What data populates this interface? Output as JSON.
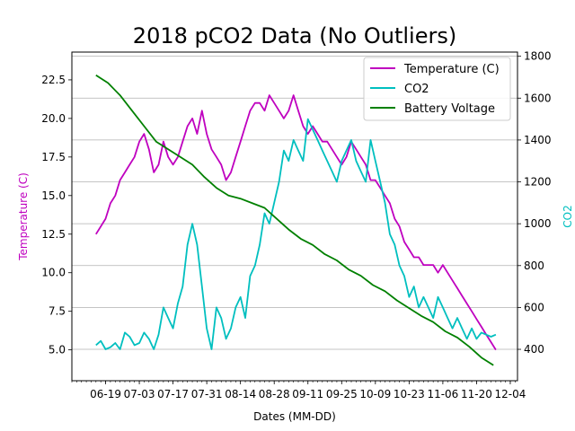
{
  "chart_data": {
    "type": "line",
    "title": "2018 pCO2 Data (No Outliers)",
    "xlabel": "Dates (MM-DD)",
    "ylabel_left": "Temperature (C)",
    "ylabel_right": "CO2",
    "x_ticks": [
      "06-19",
      "07-03",
      "07-17",
      "07-31",
      "08-14",
      "08-28",
      "09-11",
      "09-25",
      "10-09",
      "10-23",
      "11-06",
      "11-20",
      "12-04"
    ],
    "xlim": [
      "06-05",
      "12-07"
    ],
    "y_left_ticks": [
      "5.0",
      "7.5",
      "10.0",
      "12.5",
      "15.0",
      "17.5",
      "20.0",
      "22.5"
    ],
    "ylim_left": [
      3.0,
      24.3
    ],
    "y_right_ticks": [
      "400",
      "600",
      "800",
      "1000",
      "1200",
      "1400",
      "1600",
      "1800"
    ],
    "ylim_right": [
      250,
      1820
    ],
    "right_grid": true,
    "legend_position": "upper right",
    "colors": {
      "temperature": "#bf00bf",
      "co2": "#00bfbf",
      "battery": "#008000"
    },
    "series": [
      {
        "name": "Temperature (C)",
        "axis": "left",
        "color": "#bf00bf",
        "x": [
          "06-15",
          "06-17",
          "06-19",
          "06-21",
          "06-23",
          "06-25",
          "06-27",
          "06-29",
          "07-01",
          "07-03",
          "07-05",
          "07-07",
          "07-09",
          "07-11",
          "07-13",
          "07-15",
          "07-17",
          "07-19",
          "07-21",
          "07-23",
          "07-25",
          "07-27",
          "07-29",
          "07-31",
          "08-02",
          "08-04",
          "08-06",
          "08-08",
          "08-10",
          "08-12",
          "08-14",
          "08-16",
          "08-18",
          "08-20",
          "08-22",
          "08-24",
          "08-26",
          "08-28",
          "08-30",
          "09-01",
          "09-03",
          "09-05",
          "09-07",
          "09-09",
          "09-11",
          "09-13",
          "09-15",
          "09-17",
          "09-19",
          "09-21",
          "09-23",
          "09-25",
          "09-27",
          "09-29",
          "10-01",
          "10-03",
          "10-05",
          "10-07",
          "10-09",
          "10-11",
          "10-13",
          "10-15",
          "10-17",
          "10-19",
          "10-21",
          "10-23",
          "10-25",
          "10-27",
          "10-29",
          "10-31",
          "11-02",
          "11-04",
          "11-06",
          "11-08",
          "11-10",
          "11-12",
          "11-14",
          "11-16",
          "11-18",
          "11-20",
          "11-22",
          "11-24",
          "11-26",
          "11-28"
        ],
        "y": [
          12.5,
          13.0,
          13.5,
          14.5,
          15.0,
          16.0,
          16.5,
          17.0,
          17.5,
          18.5,
          19.0,
          18.0,
          16.5,
          17.0,
          18.5,
          17.5,
          17.0,
          17.5,
          18.5,
          19.5,
          20.0,
          19.0,
          20.5,
          19.0,
          18.0,
          17.5,
          17.0,
          16.0,
          16.5,
          17.5,
          18.5,
          19.5,
          20.5,
          21.0,
          21.0,
          20.5,
          21.5,
          21.0,
          20.5,
          20.0,
          20.5,
          21.5,
          20.5,
          19.5,
          19.0,
          19.5,
          19.0,
          18.5,
          18.5,
          18.0,
          17.5,
          17.0,
          17.5,
          18.5,
          18.0,
          17.5,
          17.0,
          16.0,
          16.0,
          15.5,
          15.0,
          14.5,
          13.5,
          13.0,
          12.0,
          11.5,
          11.0,
          11.0,
          10.5,
          10.5,
          10.5,
          10.0,
          10.5,
          10.0,
          9.5,
          9.0,
          8.5,
          8.0,
          7.5,
          7.0,
          6.5,
          6.0,
          5.5,
          5.0
        ]
      },
      {
        "name": "CO2",
        "axis": "right",
        "color": "#00bfbf",
        "x": [
          "06-15",
          "06-17",
          "06-19",
          "06-21",
          "06-23",
          "06-25",
          "06-27",
          "06-29",
          "07-01",
          "07-03",
          "07-05",
          "07-07",
          "07-09",
          "07-11",
          "07-13",
          "07-15",
          "07-17",
          "07-19",
          "07-21",
          "07-23",
          "07-25",
          "07-27",
          "07-29",
          "07-31",
          "08-02",
          "08-04",
          "08-06",
          "08-08",
          "08-10",
          "08-12",
          "08-14",
          "08-16",
          "08-18",
          "08-20",
          "08-22",
          "08-24",
          "08-26",
          "08-28",
          "08-30",
          "09-01",
          "09-03",
          "09-05",
          "09-07",
          "09-09",
          "09-11",
          "09-13",
          "09-15",
          "09-17",
          "09-19",
          "09-21",
          "09-23",
          "09-25",
          "09-27",
          "09-29",
          "10-01",
          "10-03",
          "10-05",
          "10-07",
          "10-09",
          "10-11",
          "10-13",
          "10-15",
          "10-17",
          "10-19",
          "10-21",
          "10-23",
          "10-25",
          "10-27",
          "10-29",
          "10-31",
          "11-02",
          "11-04",
          "11-06",
          "11-08",
          "11-10",
          "11-12",
          "11-14",
          "11-16",
          "11-18",
          "11-20",
          "11-22",
          "11-24",
          "11-26",
          "11-28"
        ],
        "y": [
          420,
          440,
          400,
          410,
          430,
          400,
          480,
          460,
          420,
          430,
          480,
          450,
          400,
          470,
          600,
          550,
          500,
          620,
          700,
          900,
          1000,
          900,
          700,
          500,
          400,
          600,
          550,
          450,
          500,
          600,
          650,
          550,
          750,
          800,
          900,
          1050,
          1000,
          1100,
          1200,
          1350,
          1300,
          1400,
          1350,
          1300,
          1500,
          1450,
          1400,
          1350,
          1300,
          1250,
          1200,
          1300,
          1350,
          1400,
          1300,
          1250,
          1200,
          1400,
          1300,
          1200,
          1100,
          950,
          900,
          800,
          750,
          650,
          700,
          600,
          650,
          600,
          550,
          650,
          600,
          550,
          500,
          550,
          500,
          450,
          500,
          450,
          480,
          470,
          460,
          470
        ]
      },
      {
        "name": "Battery Voltage",
        "axis": "left",
        "color": "#008000",
        "x": [
          "06-15",
          "06-20",
          "06-25",
          "06-30",
          "07-05",
          "07-10",
          "07-15",
          "07-20",
          "07-25",
          "07-30",
          "08-04",
          "08-09",
          "08-14",
          "08-19",
          "08-24",
          "08-29",
          "09-03",
          "09-08",
          "09-13",
          "09-18",
          "09-23",
          "09-28",
          "10-03",
          "10-08",
          "10-13",
          "10-18",
          "10-23",
          "10-28",
          "11-02",
          "11-07",
          "11-12",
          "11-17",
          "11-22",
          "11-27"
        ],
        "y": [
          22.8,
          22.3,
          21.5,
          20.5,
          19.5,
          18.5,
          18.0,
          17.5,
          17.0,
          16.2,
          15.5,
          15.0,
          14.8,
          14.5,
          14.2,
          13.5,
          12.8,
          12.2,
          11.8,
          11.2,
          10.8,
          10.2,
          9.8,
          9.2,
          8.8,
          8.2,
          7.7,
          7.2,
          6.8,
          6.2,
          5.8,
          5.2,
          4.5,
          4.0
        ]
      }
    ]
  }
}
